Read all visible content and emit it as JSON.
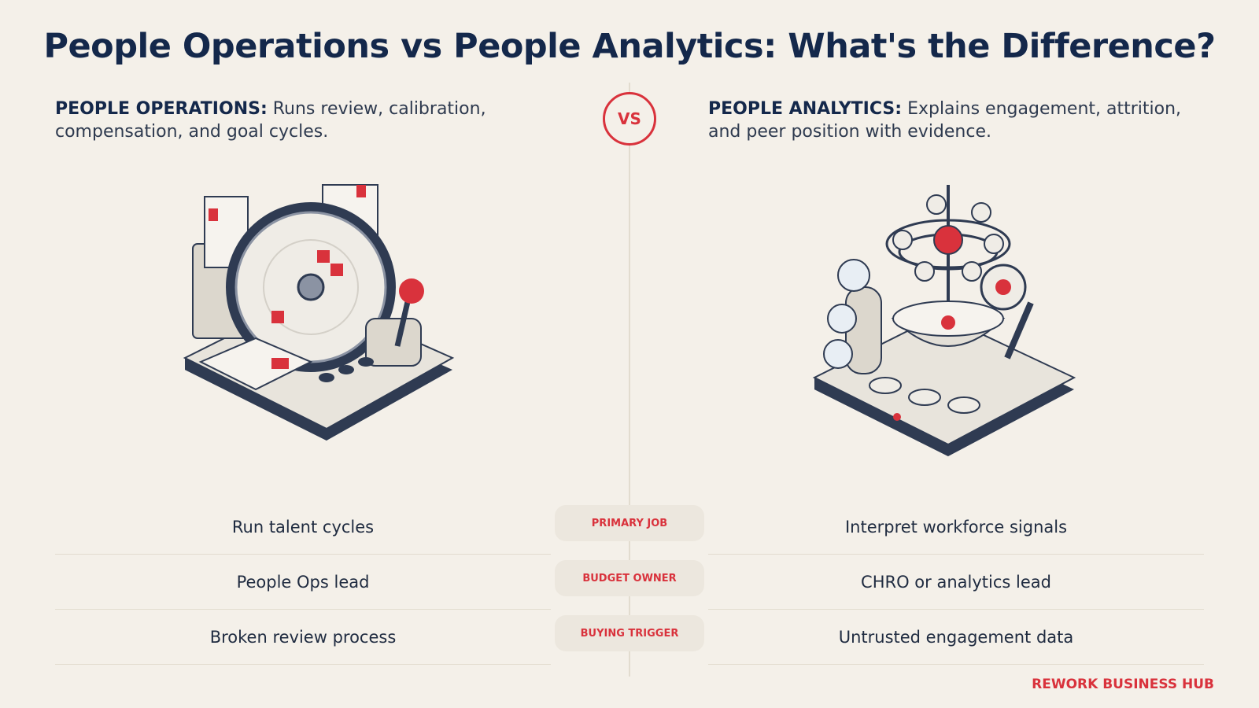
{
  "header": {
    "title": "People Operations vs People Analytics: What's the Difference?"
  },
  "vs": "VS",
  "columns": [
    {
      "heading": "PEOPLE OPERATIONS:",
      "description": "Runs review, calibration, compensation, and goal cycles."
    },
    {
      "heading": "PEOPLE ANALYTICS:",
      "description": "Explains engagement, attrition, and peer position with evidence."
    }
  ],
  "rows": [
    {
      "label": "PRIMARY JOB",
      "left": "Run talent cycles",
      "right": "Interpret workforce signals"
    },
    {
      "label": "BUDGET OWNER",
      "left": "People Ops lead",
      "right": "CHRO or analytics lead"
    },
    {
      "label": "BUYING TRIGGER",
      "left": "Broken review process",
      "right": "Untrusted engagement data"
    }
  ],
  "footer": "REWORK BUSINESS HUB"
}
